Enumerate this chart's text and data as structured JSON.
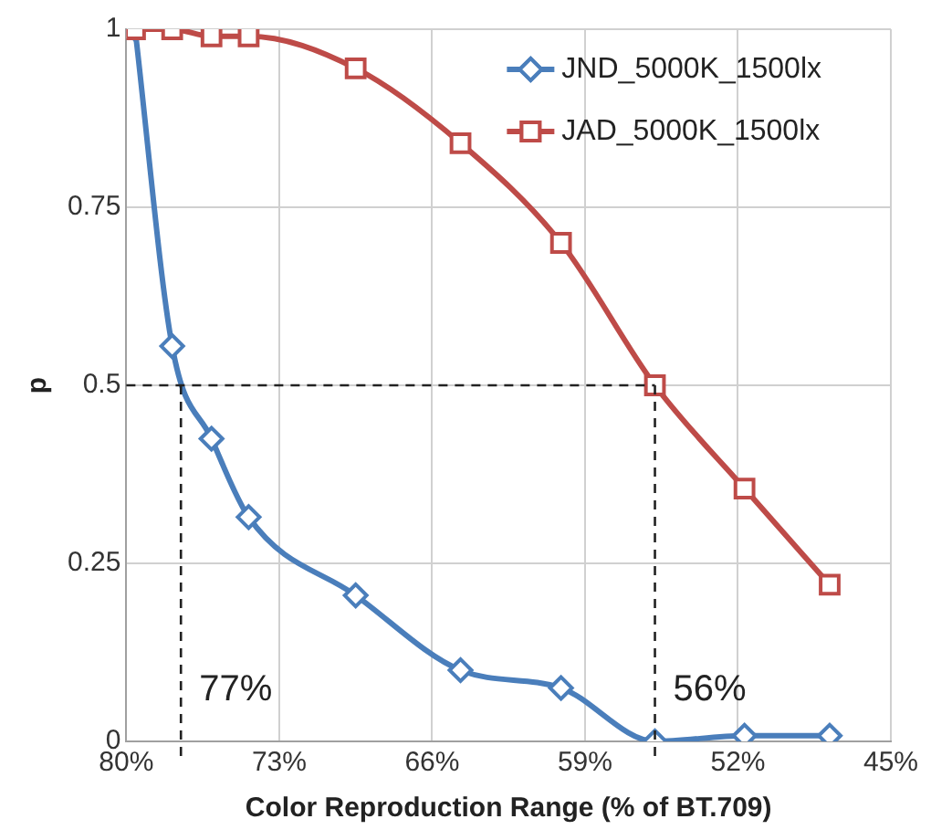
{
  "chart_data": {
    "type": "line",
    "xlabel": "Color Reproduction Range (% of BT.709)",
    "ylabel": "p",
    "xlim": [
      80,
      45
    ],
    "xticks": [
      {
        "value": 80,
        "label": "80%"
      },
      {
        "value": 73,
        "label": "73%"
      },
      {
        "value": 66,
        "label": "66%"
      },
      {
        "value": 59,
        "label": "59%"
      },
      {
        "value": 52,
        "label": "52%"
      },
      {
        "value": 45,
        "label": "45%"
      }
    ],
    "ylim": [
      0,
      1
    ],
    "yticks": [
      0,
      0.25,
      0.5,
      0.75,
      1
    ],
    "grid": true,
    "legend": "top right",
    "series": [
      {
        "name": "JND_5000K_1500lx",
        "color": "#4a7ebb",
        "marker": "diamond",
        "x": [
          79.6,
          77.9,
          76.1,
          74.4,
          69.5,
          64.7,
          60.1,
          55.8,
          51.7,
          47.8
        ],
        "values": [
          1,
          0.555,
          0.425,
          0.315,
          0.205,
          0.1,
          0.075,
          0,
          0.008,
          0.008
        ]
      },
      {
        "name": "JAD_5000K_1500lx",
        "color": "#be4b48",
        "marker": "square",
        "x": [
          79.6,
          77.9,
          76.1,
          74.4,
          69.5,
          64.7,
          60.1,
          55.8,
          51.7,
          47.8
        ],
        "values": [
          1,
          1,
          0.99,
          0.99,
          0.945,
          0.84,
          0.7,
          0.5,
          0.355,
          0.22
        ]
      }
    ],
    "ref_lines": [
      {
        "axis": "y",
        "value": 0.5,
        "line_style": "dashed"
      },
      {
        "axis": "x",
        "value": 77.5,
        "label": "77%",
        "line_style": "dashed"
      },
      {
        "axis": "x",
        "value": 55.8,
        "label": "56%",
        "line_style": "dashed"
      }
    ]
  }
}
